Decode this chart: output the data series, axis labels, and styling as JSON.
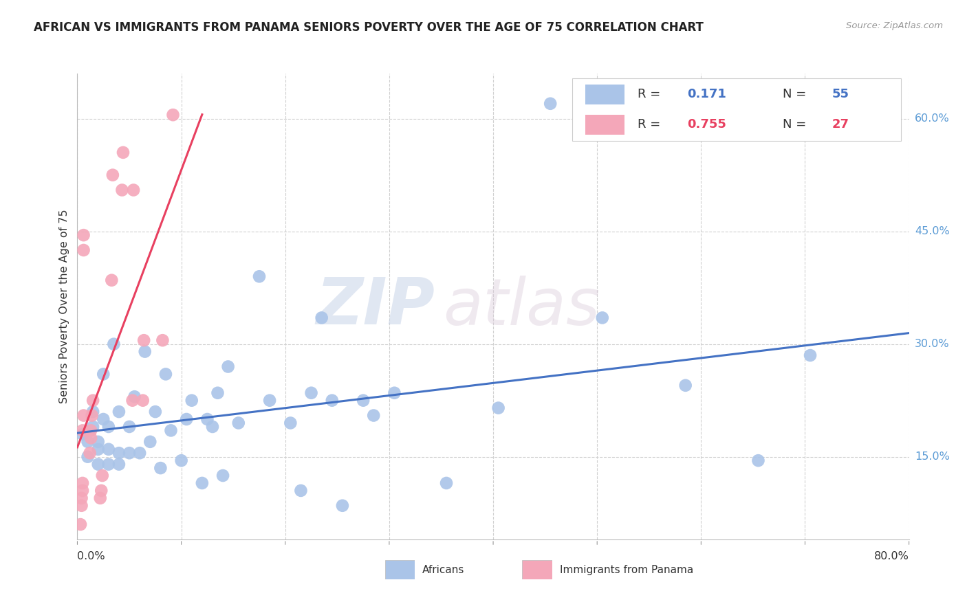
{
  "title": "AFRICAN VS IMMIGRANTS FROM PANAMA SENIORS POVERTY OVER THE AGE OF 75 CORRELATION CHART",
  "source": "Source: ZipAtlas.com",
  "ylabel": "Seniors Poverty Over the Age of 75",
  "xlim": [
    0.0,
    0.8
  ],
  "ylim": [
    0.04,
    0.66
  ],
  "yticks": [
    0.15,
    0.3,
    0.45,
    0.6
  ],
  "ytick_labels": [
    "15.0%",
    "30.0%",
    "45.0%",
    "60.0%"
  ],
  "xtick_positions": [
    0.0,
    0.1,
    0.2,
    0.3,
    0.4,
    0.5,
    0.6,
    0.7,
    0.8
  ],
  "africans_R": 0.171,
  "africans_N": 55,
  "panama_R": 0.755,
  "panama_N": 27,
  "africans_color": "#aac4e8",
  "panama_color": "#f4a7b9",
  "line_african_color": "#4472c4",
  "line_panama_color": "#e84060",
  "watermark_zip": "ZIP",
  "watermark_atlas": "atlas",
  "africans_x": [
    0.005,
    0.01,
    0.01,
    0.015,
    0.015,
    0.02,
    0.02,
    0.02,
    0.025,
    0.025,
    0.03,
    0.03,
    0.03,
    0.035,
    0.04,
    0.04,
    0.04,
    0.05,
    0.05,
    0.055,
    0.06,
    0.065,
    0.07,
    0.075,
    0.08,
    0.085,
    0.09,
    0.1,
    0.105,
    0.11,
    0.12,
    0.125,
    0.13,
    0.135,
    0.14,
    0.145,
    0.155,
    0.175,
    0.185,
    0.205,
    0.215,
    0.225,
    0.235,
    0.245,
    0.255,
    0.275,
    0.285,
    0.305,
    0.355,
    0.405,
    0.455,
    0.505,
    0.585,
    0.655,
    0.705
  ],
  "africans_y": [
    0.18,
    0.15,
    0.17,
    0.19,
    0.21,
    0.14,
    0.16,
    0.17,
    0.2,
    0.26,
    0.14,
    0.16,
    0.19,
    0.3,
    0.14,
    0.155,
    0.21,
    0.155,
    0.19,
    0.23,
    0.155,
    0.29,
    0.17,
    0.21,
    0.135,
    0.26,
    0.185,
    0.145,
    0.2,
    0.225,
    0.115,
    0.2,
    0.19,
    0.235,
    0.125,
    0.27,
    0.195,
    0.39,
    0.225,
    0.195,
    0.105,
    0.235,
    0.335,
    0.225,
    0.085,
    0.225,
    0.205,
    0.235,
    0.115,
    0.215,
    0.62,
    0.335,
    0.245,
    0.145,
    0.285
  ],
  "panama_x": [
    0.003,
    0.004,
    0.004,
    0.005,
    0.005,
    0.005,
    0.006,
    0.006,
    0.006,
    0.012,
    0.013,
    0.013,
    0.014,
    0.015,
    0.022,
    0.023,
    0.024,
    0.033,
    0.034,
    0.043,
    0.044,
    0.053,
    0.054,
    0.063,
    0.064,
    0.082,
    0.092
  ],
  "panama_y": [
    0.06,
    0.085,
    0.095,
    0.105,
    0.115,
    0.185,
    0.205,
    0.425,
    0.445,
    0.155,
    0.175,
    0.185,
    0.205,
    0.225,
    0.095,
    0.105,
    0.125,
    0.385,
    0.525,
    0.505,
    0.555,
    0.225,
    0.505,
    0.225,
    0.305,
    0.305,
    0.605
  ]
}
